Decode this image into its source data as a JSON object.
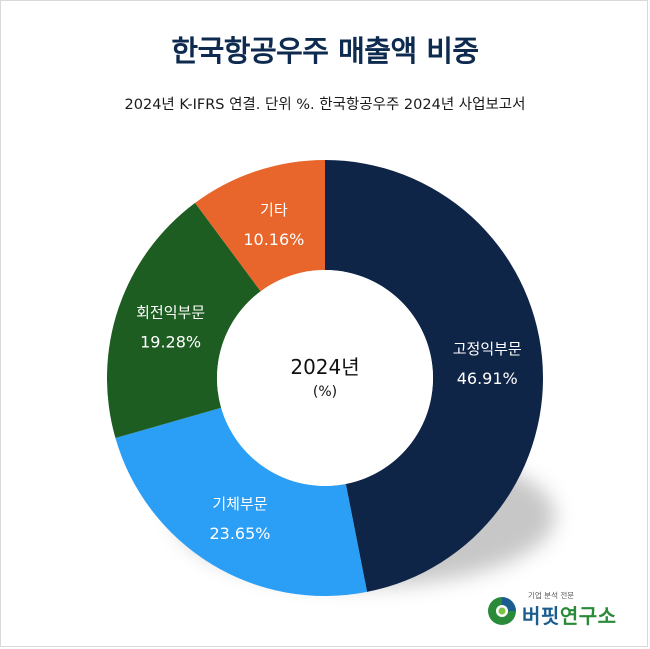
{
  "title": "한국항공우주 매출액 비중",
  "subtitle": "2024년 K-IFRS 연결. 단위 %. 한국항공우주 2024년 사업보고서",
  "chart_data": {
    "type": "pie",
    "donut": true,
    "center_label": "2024년",
    "center_sublabel": "(%)",
    "start_angle_deg": 0,
    "direction": "clockwise",
    "slices": [
      {
        "label": "고정익부문",
        "value": 46.91,
        "value_text": "46.91%",
        "color": "#0f2547"
      },
      {
        "label": "기체부문",
        "value": 23.65,
        "value_text": "23.65%",
        "color": "#2b9ef5"
      },
      {
        "label": "회전익부문",
        "value": 19.28,
        "value_text": "19.28%",
        "color": "#1d5d22"
      },
      {
        "label": "기타",
        "value": 10.16,
        "value_text": "10.16%",
        "color": "#e8662c"
      }
    ]
  },
  "logo": {
    "tagline": "기업 분석 전문",
    "name_part1": "버핏",
    "name_part2": "연구소"
  }
}
